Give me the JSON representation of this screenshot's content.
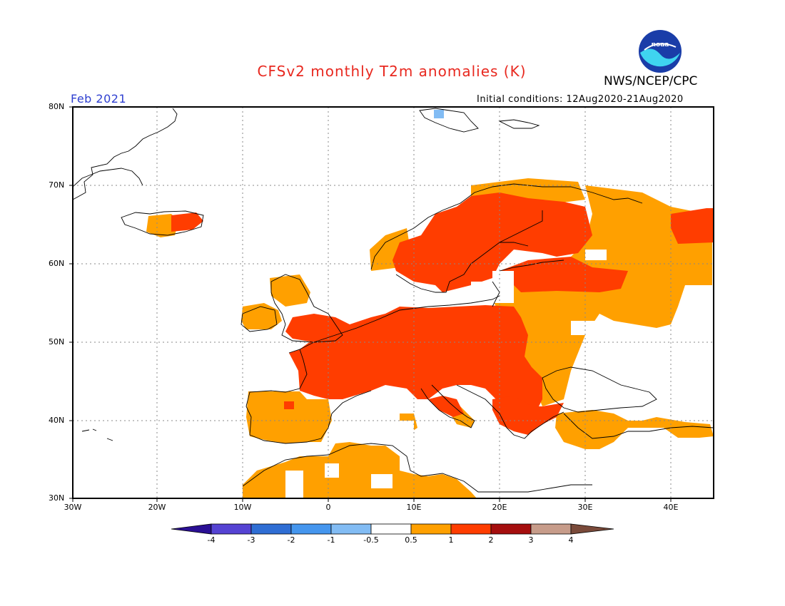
{
  "title": "CFSv2 monthly T2m anomalies (K)",
  "agency": "NWS/NCEP/CPC",
  "logo_text": "noaa",
  "target_month": "Feb 2021",
  "initial_conditions": "Initial conditions: 12Aug2020-21Aug2020",
  "map": {
    "region": "Europe",
    "lon_range": [
      -30,
      45
    ],
    "lat_range": [
      30,
      80
    ],
    "grid": "dotted",
    "lat_labels": [
      "30N",
      "40N",
      "50N",
      "60N",
      "70N",
      "80N"
    ],
    "lon_labels": [
      "30W",
      "20W",
      "10W",
      "0",
      "10E",
      "20E",
      "30E",
      "40E"
    ]
  },
  "colorbar": {
    "labels": [
      "-4",
      "-3",
      "-2",
      "-1",
      "-0.5",
      "0.5",
      "1",
      "2",
      "3",
      "4"
    ],
    "colors": [
      "#2a0f94",
      "#5543d3",
      "#2f6ed4",
      "#4596ee",
      "#82bcf4",
      "#ffffff",
      "#ffa000",
      "#ff3d00",
      "#a50e0e",
      "#c79c8a",
      "#7a4a3a"
    ]
  },
  "anomaly_regions": [
    {
      "area": "Iceland",
      "category": "1 to 2 / 0.5 to 1"
    },
    {
      "area": "Scandinavia",
      "category": "1 to 2"
    },
    {
      "area": "Central Europe",
      "category": "1 to 2"
    },
    {
      "area": "France",
      "category": "1 to 2"
    },
    {
      "area": "Balkans",
      "category": "1 to 2"
    },
    {
      "area": "Iberia",
      "category": "0.5 to 1"
    },
    {
      "area": "North Africa",
      "category": "0.5 to 1"
    },
    {
      "area": "European Russia",
      "category": "0.5 to 1"
    },
    {
      "area": "Svalbard",
      "category": "-1 to -0.5"
    }
  ]
}
